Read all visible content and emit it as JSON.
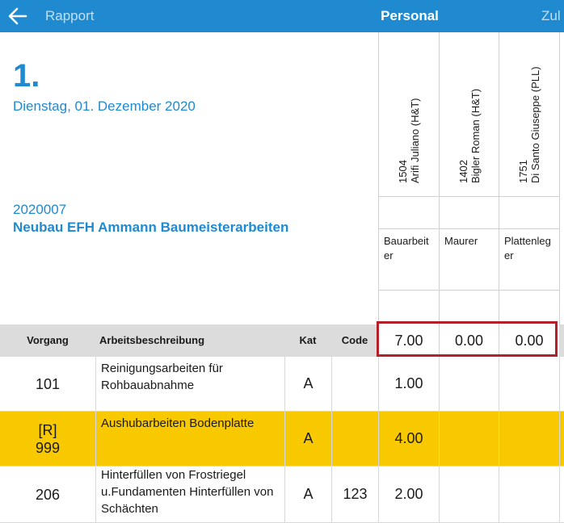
{
  "topbar": {
    "back_label": "Rapport",
    "title": "Personal",
    "next_label": "Zul"
  },
  "day": {
    "number": "1.",
    "date": "Dienstag, 01. Dezember 2020"
  },
  "project": {
    "number": "2020007",
    "name": "Neubau EFH Ammann Baumeisterarbeiten"
  },
  "personnel": [
    {
      "id": "1504",
      "name": "Arifi Juliano (H&T)",
      "role": "Bauarbeiter",
      "total": "7.00"
    },
    {
      "id": "1402",
      "name": "Bigler Roman (H&T)",
      "role": "Maurer",
      "total": "0.00"
    },
    {
      "id": "1751",
      "name": "Di Santo Giuseppe (PLL)",
      "role": "Plattenleger",
      "total": "0.00"
    }
  ],
  "table": {
    "headers": {
      "vorgang": "Vorgang",
      "beschreibung": "Arbeitsbeschreibung",
      "kat": "Kat",
      "code": "Code"
    },
    "rows": [
      {
        "prefix": "",
        "vorgang": "101",
        "desc": "Reinigungsarbeiten für Rohbauabnahme",
        "kat": "A",
        "code": "",
        "hours": [
          "1.00",
          "",
          ""
        ]
      },
      {
        "prefix": "[R]",
        "vorgang": "999",
        "desc": "Aushubarbeiten Bodenplatte",
        "kat": "A",
        "code": "",
        "hours": [
          "4.00",
          "",
          ""
        ]
      },
      {
        "prefix": "",
        "vorgang": "206",
        "desc": "Hinterfüllen von Frostriegel u.Fundamenten Hinterfüllen von Schächten",
        "kat": "A",
        "code": "123",
        "hours": [
          "2.00",
          "",
          ""
        ]
      }
    ]
  },
  "colors": {
    "accent": "#1f8ad0",
    "highlight_row": "#f9c900",
    "selection_border": "#b3202a",
    "header_bg": "#dcdcdc"
  }
}
